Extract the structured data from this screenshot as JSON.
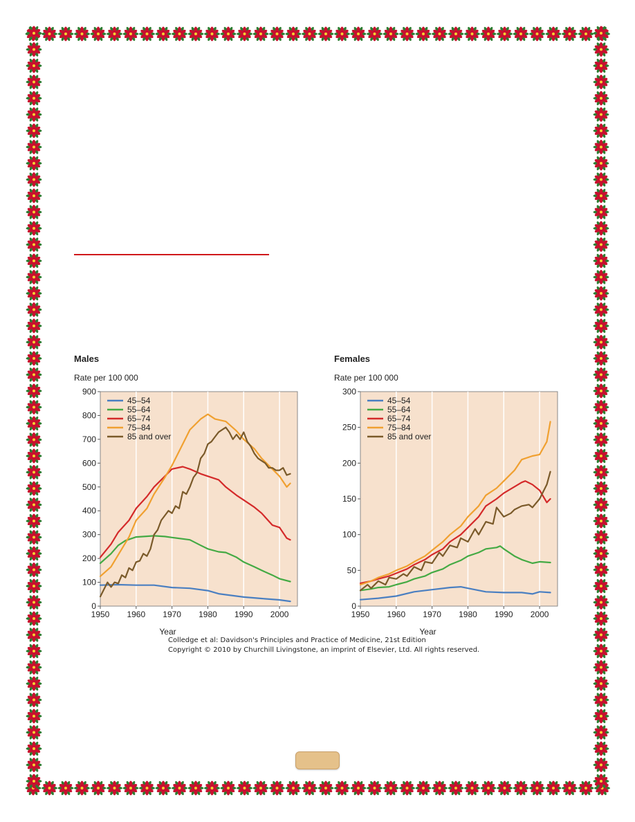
{
  "colors": {
    "frame_red": "#c8102e",
    "frame_green": "#2e7d32",
    "rule": "#d0181b",
    "plot_bg": "#f7e1cd",
    "page_tab": "#e5c18a"
  },
  "credit": {
    "line1": "Colledge et al: Davidson's Principles and Practice of Medicine, 21st Edition",
    "line2": "Copyright © 2010 by Churchill Livingstone, an imprint of Elsevier, Ltd. All rights reserved."
  },
  "chart_data": [
    {
      "type": "line",
      "title": "Males",
      "ylabel": "Rate per 100 000",
      "xlabel": "Year",
      "xlim": [
        1950,
        2005
      ],
      "ylim": [
        0,
        900
      ],
      "xticks": [
        1950,
        1960,
        1970,
        1980,
        1990,
        2000
      ],
      "yticks": [
        0,
        100,
        200,
        300,
        400,
        500,
        600,
        700,
        800,
        900
      ],
      "grid": "vertical",
      "legend": "top-left",
      "series": [
        {
          "name": "45–54",
          "color": "#4a7fc1",
          "x": [
            1950,
            1955,
            1960,
            1965,
            1970,
            1975,
            1980,
            1983,
            1985,
            1990,
            1995,
            2000,
            2003
          ],
          "y": [
            88,
            90,
            88,
            88,
            78,
            75,
            65,
            52,
            48,
            38,
            32,
            26,
            20
          ]
        },
        {
          "name": "55–64",
          "color": "#44aa44",
          "x": [
            1950,
            1953,
            1955,
            1957,
            1960,
            1965,
            1968,
            1970,
            1975,
            1978,
            1980,
            1983,
            1985,
            1988,
            1990,
            1993,
            1995,
            1998,
            2000,
            2003
          ],
          "y": [
            180,
            220,
            255,
            275,
            290,
            295,
            292,
            288,
            278,
            255,
            240,
            228,
            225,
            205,
            185,
            165,
            150,
            130,
            115,
            103
          ]
        },
        {
          "name": "65–74",
          "color": "#d42a2a",
          "x": [
            1950,
            1953,
            1955,
            1958,
            1960,
            1963,
            1965,
            1968,
            1970,
            1973,
            1975,
            1978,
            1980,
            1983,
            1985,
            1988,
            1990,
            1993,
            1995,
            1998,
            2000,
            2002,
            2003
          ],
          "y": [
            205,
            260,
            310,
            360,
            410,
            460,
            500,
            545,
            575,
            585,
            575,
            555,
            545,
            530,
            500,
            465,
            445,
            415,
            390,
            340,
            330,
            285,
            278
          ]
        },
        {
          "name": "75–84",
          "color": "#f0a030",
          "x": [
            1950,
            1953,
            1955,
            1958,
            1960,
            1963,
            1965,
            1968,
            1970,
            1973,
            1975,
            1978,
            1980,
            1982,
            1985,
            1988,
            1990,
            1993,
            1995,
            1998,
            2000,
            2002,
            2003
          ],
          "y": [
            125,
            165,
            215,
            290,
            360,
            410,
            470,
            540,
            590,
            680,
            740,
            785,
            805,
            785,
            775,
            735,
            700,
            660,
            620,
            575,
            545,
            500,
            515
          ]
        },
        {
          "name": "85 and over",
          "color": "#7a5a2a",
          "x": [
            1950,
            1951,
            1952,
            1953,
            1954,
            1955,
            1956,
            1957,
            1958,
            1959,
            1960,
            1961,
            1962,
            1963,
            1964,
            1965,
            1966,
            1967,
            1968,
            1969,
            1970,
            1971,
            1972,
            1973,
            1974,
            1975,
            1976,
            1977,
            1978,
            1979,
            1980,
            1981,
            1982,
            1983,
            1984,
            1985,
            1986,
            1987,
            1988,
            1989,
            1990,
            1991,
            1992,
            1993,
            1994,
            1995,
            1996,
            1997,
            1998,
            1999,
            2000,
            2001,
            2002,
            2003
          ],
          "y": [
            40,
            70,
            100,
            80,
            100,
            95,
            130,
            120,
            160,
            150,
            185,
            190,
            220,
            210,
            240,
            300,
            320,
            360,
            380,
            400,
            390,
            420,
            410,
            480,
            470,
            500,
            540,
            560,
            620,
            640,
            680,
            690,
            710,
            730,
            740,
            750,
            730,
            700,
            720,
            700,
            730,
            690,
            670,
            640,
            620,
            610,
            600,
            580,
            580,
            570,
            570,
            580,
            550,
            555
          ]
        }
      ]
    },
    {
      "type": "line",
      "title": "Females",
      "ylabel": "Rate per 100 000",
      "xlabel": "Year",
      "xlim": [
        1950,
        2005
      ],
      "ylim": [
        0,
        300
      ],
      "xticks": [
        1950,
        1960,
        1970,
        1980,
        1990,
        2000
      ],
      "yticks": [
        0,
        50,
        100,
        150,
        200,
        250,
        300
      ],
      "grid": "vertical",
      "legend": "top-left",
      "series": [
        {
          "name": "45–54",
          "color": "#4a7fc1",
          "x": [
            1950,
            1955,
            1960,
            1965,
            1970,
            1975,
            1978,
            1980,
            1985,
            1990,
            1995,
            1998,
            2000,
            2003
          ],
          "y": [
            9,
            11,
            14,
            20,
            23,
            26,
            27,
            25,
            20,
            19,
            19,
            17,
            20,
            19
          ]
        },
        {
          "name": "55–64",
          "color": "#44aa44",
          "x": [
            1950,
            1953,
            1955,
            1958,
            1960,
            1963,
            1965,
            1968,
            1970,
            1973,
            1975,
            1978,
            1980,
            1983,
            1985,
            1988,
            1989,
            1990,
            1993,
            1995,
            1998,
            2000,
            2003
          ],
          "y": [
            22,
            24,
            26,
            27,
            30,
            34,
            38,
            42,
            47,
            52,
            58,
            64,
            70,
            75,
            80,
            82,
            84,
            80,
            70,
            65,
            60,
            62,
            61
          ]
        },
        {
          "name": "65–74",
          "color": "#d42a2a",
          "x": [
            1950,
            1953,
            1955,
            1958,
            1960,
            1963,
            1965,
            1968,
            1970,
            1973,
            1975,
            1978,
            1980,
            1983,
            1985,
            1988,
            1990,
            1993,
            1995,
            1996,
            1998,
            2000,
            2002,
            2003
          ],
          "y": [
            32,
            35,
            38,
            42,
            46,
            52,
            58,
            65,
            72,
            80,
            90,
            100,
            110,
            125,
            140,
            150,
            158,
            167,
            173,
            175,
            170,
            162,
            145,
            150
          ]
        },
        {
          "name": "75–84",
          "color": "#f0a030",
          "x": [
            1950,
            1953,
            1955,
            1958,
            1960,
            1963,
            1965,
            1968,
            1970,
            1973,
            1975,
            1978,
            1980,
            1983,
            1985,
            1988,
            1990,
            1993,
            1995,
            1998,
            2000,
            2002,
            2003
          ],
          "y": [
            30,
            35,
            40,
            45,
            50,
            56,
            62,
            70,
            78,
            90,
            100,
            112,
            125,
            140,
            155,
            165,
            175,
            190,
            205,
            210,
            212,
            230,
            258
          ]
        },
        {
          "name": "85 and over",
          "color": "#7a5a2a",
          "x": [
            1950,
            1952,
            1953,
            1955,
            1957,
            1958,
            1960,
            1962,
            1963,
            1965,
            1967,
            1968,
            1970,
            1972,
            1973,
            1975,
            1977,
            1978,
            1980,
            1982,
            1983,
            1985,
            1987,
            1988,
            1990,
            1992,
            1993,
            1995,
            1997,
            1998,
            2000,
            2002,
            2003
          ],
          "y": [
            22,
            30,
            25,
            35,
            30,
            40,
            38,
            45,
            42,
            55,
            50,
            62,
            60,
            75,
            70,
            85,
            82,
            95,
            90,
            108,
            100,
            118,
            115,
            138,
            125,
            130,
            135,
            140,
            142,
            138,
            150,
            170,
            188
          ]
        }
      ]
    }
  ]
}
